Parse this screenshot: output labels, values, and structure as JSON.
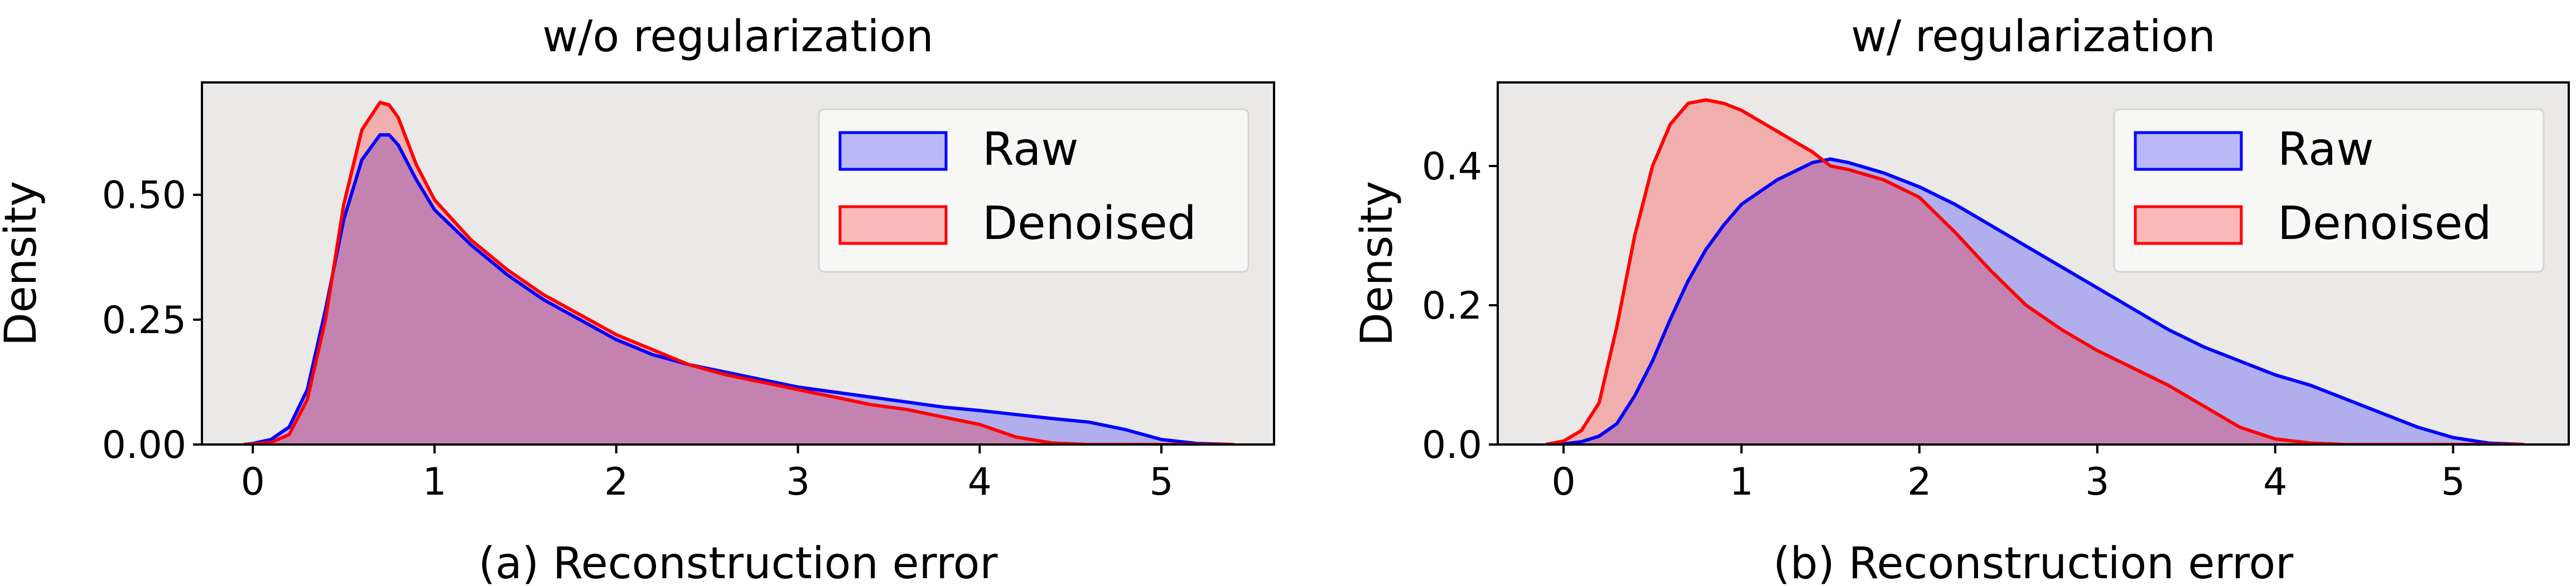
{
  "figure_colors": {
    "axes_bg": "#ebe9e7",
    "raw": "#0000ff",
    "denoised": "#ff0000",
    "overlap": "#c081b5",
    "legend_bg": "#f7f7f6"
  },
  "chart_data": [
    {
      "type": "area",
      "title": "w/o regularization",
      "xlabel": "(a) Reconstruction error",
      "ylabel": "Density",
      "xlim": [
        -0.28,
        5.62
      ],
      "ylim": [
        0,
        0.725
      ],
      "xticks": [
        "0",
        "1",
        "2",
        "3",
        "4",
        "5"
      ],
      "yticks": [
        "0.00",
        "0.25",
        "0.50"
      ],
      "ytick_values": [
        0,
        0.25,
        0.5
      ],
      "legend_position": "top-right",
      "grid": false,
      "x": [
        -0.05,
        0.0,
        0.1,
        0.2,
        0.3,
        0.4,
        0.5,
        0.6,
        0.7,
        0.75,
        0.8,
        0.9,
        1.0,
        1.2,
        1.4,
        1.6,
        1.8,
        2.0,
        2.2,
        2.4,
        2.6,
        2.8,
        3.0,
        3.2,
        3.4,
        3.6,
        3.8,
        4.0,
        4.2,
        4.4,
        4.6,
        4.8,
        5.0,
        5.2,
        5.4
      ],
      "series": [
        {
          "name": "Raw",
          "color": "#0000ff",
          "values": [
            0.0,
            0.002,
            0.01,
            0.035,
            0.11,
            0.27,
            0.45,
            0.57,
            0.62,
            0.62,
            0.6,
            0.53,
            0.47,
            0.4,
            0.34,
            0.29,
            0.25,
            0.21,
            0.18,
            0.16,
            0.145,
            0.13,
            0.115,
            0.105,
            0.095,
            0.085,
            0.075,
            0.068,
            0.06,
            0.052,
            0.045,
            0.03,
            0.01,
            0.002,
            0.0
          ]
        },
        {
          "name": "Denoised",
          "color": "#ff0000",
          "values": [
            0.0,
            0.001,
            0.004,
            0.02,
            0.09,
            0.25,
            0.48,
            0.63,
            0.685,
            0.68,
            0.655,
            0.56,
            0.49,
            0.41,
            0.35,
            0.3,
            0.26,
            0.22,
            0.19,
            0.16,
            0.14,
            0.125,
            0.11,
            0.095,
            0.08,
            0.07,
            0.055,
            0.04,
            0.015,
            0.003,
            0.0,
            0.0,
            0.0,
            0.0,
            0.0
          ]
        }
      ]
    },
    {
      "type": "area",
      "title": "w/ regularization",
      "xlabel": "(b) Reconstruction error",
      "ylabel": "Density",
      "xlim": [
        -0.37,
        5.65
      ],
      "ylim": [
        0,
        0.52
      ],
      "xticks": [
        "0",
        "1",
        "2",
        "3",
        "4",
        "5"
      ],
      "yticks": [
        "0.0",
        "0.2",
        "0.4"
      ],
      "ytick_values": [
        0,
        0.2,
        0.4
      ],
      "legend_position": "top-right",
      "grid": false,
      "x": [
        -0.1,
        0.0,
        0.1,
        0.2,
        0.3,
        0.4,
        0.5,
        0.6,
        0.7,
        0.8,
        0.9,
        1.0,
        1.2,
        1.4,
        1.5,
        1.6,
        1.8,
        2.0,
        2.2,
        2.4,
        2.6,
        2.8,
        3.0,
        3.2,
        3.4,
        3.6,
        3.8,
        4.0,
        4.2,
        4.4,
        4.6,
        4.8,
        5.0,
        5.2,
        5.4
      ],
      "series": [
        {
          "name": "Raw",
          "color": "#0000ff",
          "values": [
            0.0,
            0.001,
            0.004,
            0.012,
            0.03,
            0.07,
            0.12,
            0.18,
            0.235,
            0.28,
            0.315,
            0.345,
            0.38,
            0.405,
            0.41,
            0.405,
            0.39,
            0.37,
            0.345,
            0.315,
            0.285,
            0.255,
            0.225,
            0.195,
            0.165,
            0.14,
            0.12,
            0.1,
            0.085,
            0.065,
            0.045,
            0.025,
            0.01,
            0.002,
            0.0
          ]
        },
        {
          "name": "Denoised",
          "color": "#ff0000",
          "values": [
            0.0,
            0.005,
            0.02,
            0.06,
            0.17,
            0.3,
            0.4,
            0.46,
            0.49,
            0.495,
            0.49,
            0.48,
            0.45,
            0.42,
            0.4,
            0.395,
            0.38,
            0.355,
            0.305,
            0.25,
            0.2,
            0.165,
            0.135,
            0.11,
            0.085,
            0.055,
            0.025,
            0.008,
            0.002,
            0.0,
            0.0,
            0.0,
            0.0,
            0.0,
            0.0
          ]
        }
      ]
    }
  ]
}
